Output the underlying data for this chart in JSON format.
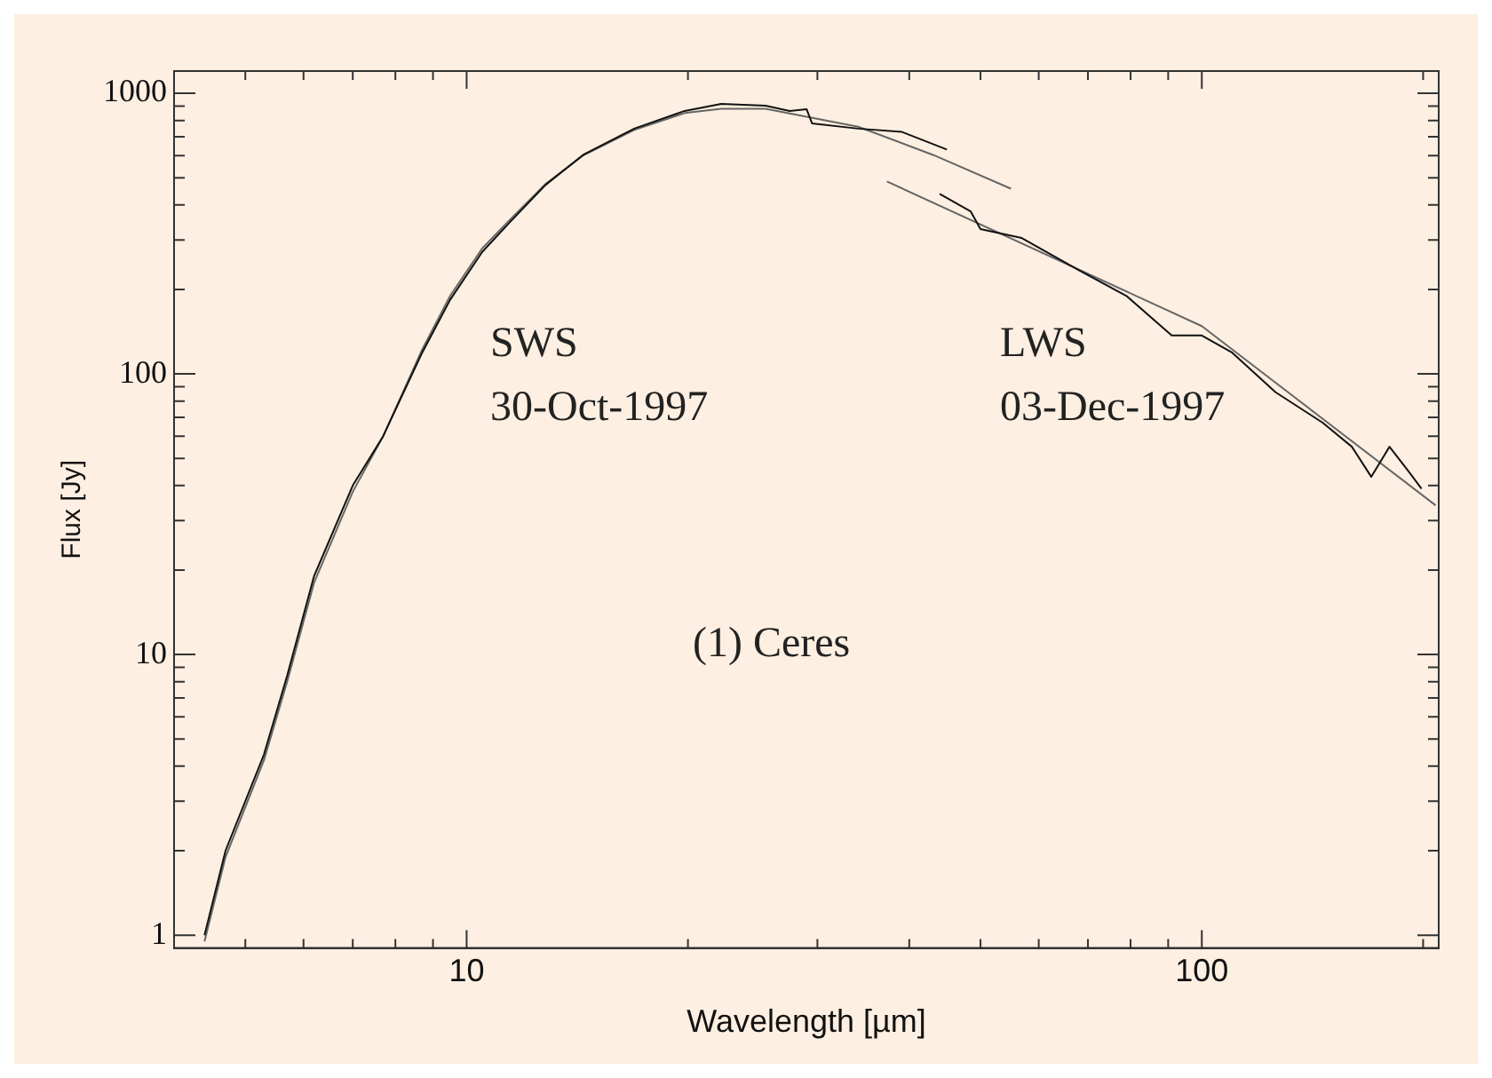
{
  "chart_data": {
    "type": "line",
    "xlabel": "Wavelength [µm]",
    "ylabel": "Flux [Jy]",
    "log": "xy",
    "grid": false,
    "legend": false,
    "marker": "none",
    "line_style": "solid",
    "xlim": [
      4,
      210
    ],
    "ylim": [
      0.9,
      1200
    ],
    "xticks": [
      {
        "value": 5,
        "label": null
      },
      {
        "value": 6,
        "label": null
      },
      {
        "value": 7,
        "label": null
      },
      {
        "value": 8,
        "label": null
      },
      {
        "value": 9,
        "label": null
      },
      10,
      {
        "value": 20,
        "label": null
      },
      {
        "value": 30,
        "label": null
      },
      {
        "value": 40,
        "label": null
      },
      {
        "value": 50,
        "label": null
      },
      {
        "value": 60,
        "label": null
      },
      {
        "value": 70,
        "label": null
      },
      {
        "value": 80,
        "label": null
      },
      {
        "value": 90,
        "label": null
      },
      100,
      {
        "value": 200,
        "label": null
      }
    ],
    "yticks": [
      1,
      {
        "value": 2,
        "label": null
      },
      {
        "value": 3,
        "label": null
      },
      {
        "value": 4,
        "label": null
      },
      {
        "value": 5,
        "label": null
      },
      {
        "value": 6,
        "label": null
      },
      {
        "value": 7,
        "label": null
      },
      {
        "value": 8,
        "label": null
      },
      {
        "value": 9,
        "label": null
      },
      10,
      {
        "value": 20,
        "label": null
      },
      {
        "value": 30,
        "label": null
      },
      {
        "value": 40,
        "label": null
      },
      {
        "value": 50,
        "label": null
      },
      {
        "value": 60,
        "label": null
      },
      {
        "value": 70,
        "label": null
      },
      {
        "value": 80,
        "label": null
      },
      {
        "value": 90,
        "label": null
      },
      100,
      {
        "value": 200,
        "label": null
      },
      {
        "value": 300,
        "label": null
      },
      {
        "value": 400,
        "label": null
      },
      {
        "value": 500,
        "label": null
      },
      {
        "value": 600,
        "label": null
      },
      {
        "value": 700,
        "label": null
      },
      {
        "value": 800,
        "label": null
      },
      {
        "value": 900,
        "label": null
      },
      1000
    ],
    "annotations": [
      "SWS",
      "30-Oct-1997",
      "LWS",
      "03-Dec-1997",
      "(1) Ceres"
    ],
    "series": [
      {
        "color": "#111111",
        "x": [
          4.4,
          4.7,
          5.3,
          5.7,
          6.2,
          7.0,
          7.7,
          8.7,
          9.5,
          10.5,
          11.4,
          12.8,
          14.4,
          16.9,
          19.8,
          22.2,
          25.5,
          27.5,
          29.0,
          29.5,
          34.1,
          39.1,
          45.0
        ],
        "values": [
          1.0,
          2.0,
          4.4,
          8.4,
          19,
          40,
          60,
          119,
          184,
          272,
          343,
          471,
          603,
          748,
          865,
          917,
          903,
          865,
          878,
          781,
          748,
          728,
          630
        ]
      },
      {
        "color": "#666666",
        "x": [
          4.4,
          4.7,
          5.3,
          5.7,
          6.2,
          7.0,
          7.7,
          8.7,
          9.5,
          10.5,
          11.4,
          12.8,
          14.4,
          16.9,
          19.8,
          22.2,
          25.5,
          34.1,
          43.1,
          55.0
        ],
        "values": [
          0.95,
          1.9,
          4.2,
          8.0,
          18,
          38,
          60,
          122,
          190,
          280,
          350,
          475,
          600,
          740,
          850,
          880,
          880,
          760,
          603,
          457
        ]
      },
      {
        "color": "#111111",
        "x": [
          44.0,
          48.5,
          50.0,
          56.9,
          67.9,
          79.1,
          91.0,
          100,
          110,
          126,
          146,
          160,
          170,
          180,
          191,
          199
        ],
        "values": [
          438,
          379,
          328,
          305,
          235,
          189,
          137,
          137,
          119,
          86,
          67,
          55,
          43,
          55,
          45,
          39
        ]
      },
      {
        "color": "#666666",
        "x": [
          37.3,
          100,
          208
        ],
        "values": [
          485,
          148,
          34
        ]
      }
    ]
  }
}
